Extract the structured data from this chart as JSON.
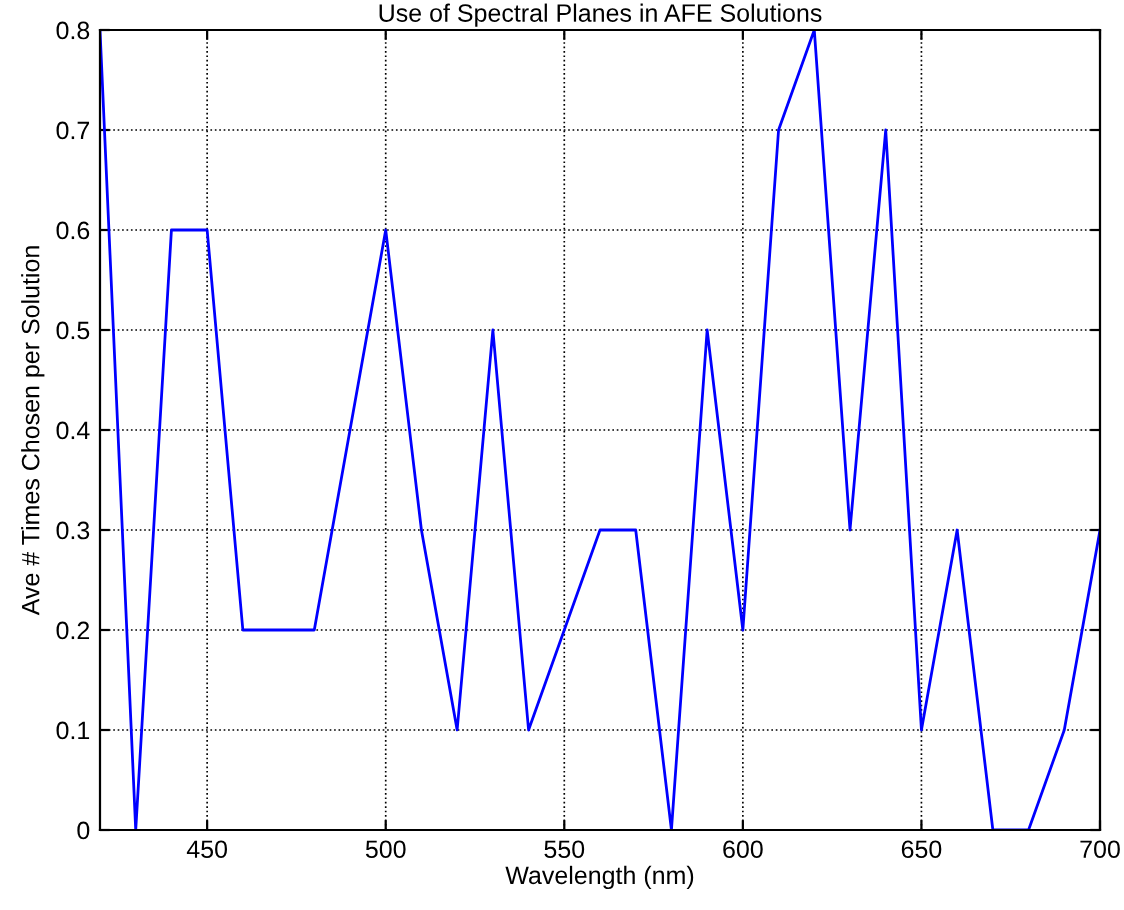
{
  "chart_data": {
    "type": "line",
    "title": "Use of Spectral Planes in AFE Solutions",
    "xlabel": "Wavelength (nm)",
    "ylabel": "Ave # Times Chosen per Solution",
    "x": [
      420,
      430,
      440,
      450,
      460,
      470,
      480,
      490,
      500,
      510,
      520,
      530,
      540,
      550,
      560,
      570,
      580,
      590,
      600,
      610,
      620,
      630,
      640,
      650,
      660,
      670,
      680,
      690,
      700
    ],
    "series": [
      {
        "color": "#0000ff",
        "values": [
          0.8,
          0,
          0.6,
          0.6,
          0.2,
          0.2,
          0.2,
          0.4,
          0.6,
          0.3,
          0.1,
          0.5,
          0.1,
          0.2,
          0.3,
          0.3,
          0,
          0.5,
          0.2,
          0.7,
          0.8,
          0.3,
          0.7,
          0.1,
          0.3,
          0,
          0,
          0.1,
          0.3
        ]
      }
    ],
    "xlim": [
      420,
      700
    ],
    "xticks": [
      450,
      500,
      550,
      600,
      650,
      700
    ],
    "ylim": [
      0,
      0.8
    ],
    "yticks": [
      0,
      0.1,
      0.2,
      0.3,
      0.4,
      0.5,
      0.6,
      0.7,
      0.8
    ],
    "grid": true,
    "line_style": "solid"
  }
}
